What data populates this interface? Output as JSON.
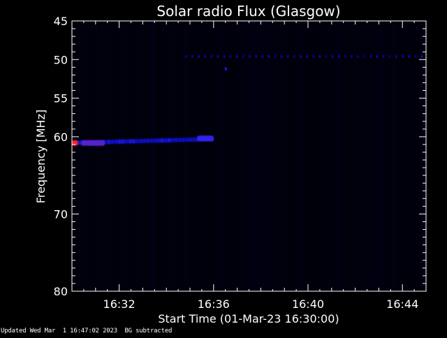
{
  "chart_data": {
    "type": "heatmap",
    "title": "Solar radio Flux (Glasgow)",
    "xlabel": "Start Time (01-Mar-23 16:30:00)",
    "ylabel": "Frequency [MHz]",
    "x_unit": "minutes after 16:30",
    "xlim": [
      0,
      15
    ],
    "ylim": [
      45,
      80
    ],
    "y_inverted": true,
    "x_ticks": [
      {
        "value": 2,
        "label": "16:32"
      },
      {
        "value": 6,
        "label": "16:36"
      },
      {
        "value": 10,
        "label": "16:40"
      },
      {
        "value": 14,
        "label": "16:44"
      }
    ],
    "y_ticks": [
      {
        "value": 45,
        "label": "45"
      },
      {
        "value": 50,
        "label": "50"
      },
      {
        "value": 55,
        "label": "55"
      },
      {
        "value": 60,
        "label": "60"
      },
      {
        "value": 70,
        "label": "70"
      },
      {
        "value": 80,
        "label": "80"
      }
    ],
    "colormap": [
      "#000010",
      "#0000a0",
      "#2020ff",
      "#ff2020"
    ],
    "features": [
      {
        "kind": "band",
        "t_start": 0.0,
        "t_end": 6.0,
        "freq_start": 60.8,
        "freq_end": 60.3,
        "intensity": 0.6
      },
      {
        "kind": "hotspot",
        "t_start": 0.0,
        "t_end": 0.25,
        "freq": 60.8,
        "intensity": 1.0
      },
      {
        "kind": "hotspot",
        "t_start": 0.4,
        "t_end": 1.4,
        "freq": 60.8,
        "intensity": 0.75
      },
      {
        "kind": "blob",
        "t_start": 5.3,
        "t_end": 6.0,
        "freq": 60.2,
        "intensity": 0.7
      },
      {
        "kind": "dotted-line",
        "t_start": 4.8,
        "t_end": 15.0,
        "freq": 49.6,
        "intensity": 0.5
      },
      {
        "kind": "dot",
        "t": 6.5,
        "freq": 51.2,
        "intensity": 0.6
      }
    ]
  },
  "footer": {
    "updated": "Updated Wed Mar  1 16:47:02 2023",
    "note": "BG subtracted"
  },
  "colors": {
    "background": "#000000",
    "axes": "#ffffff"
  }
}
